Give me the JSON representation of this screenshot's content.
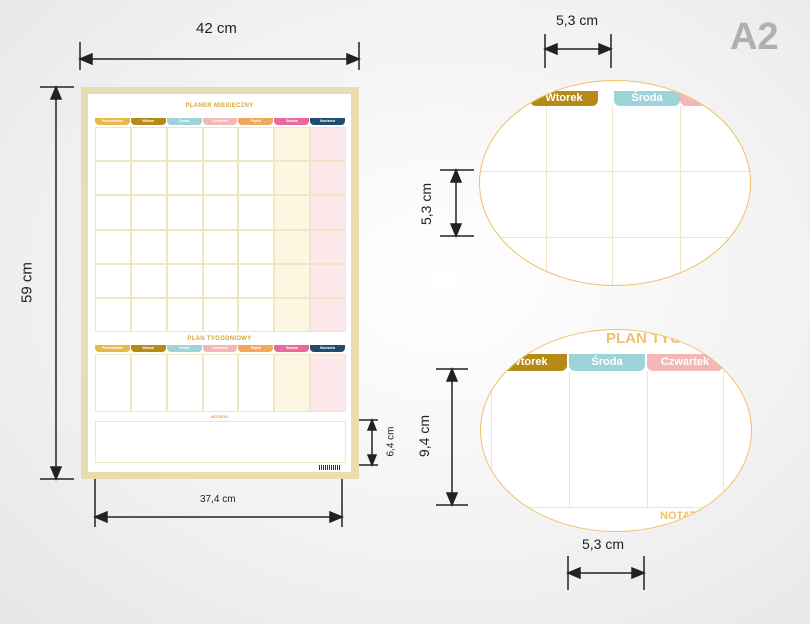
{
  "badge": "A2",
  "dims": {
    "width_top": "42 cm",
    "height_left": "59 cm",
    "inner_width": "37,4 cm",
    "notes_height": "6,4 cm",
    "cell_width_top": "5,3 cm",
    "cell_height_top": "5,3 cm",
    "cell_height_bottom": "9,4 cm",
    "cell_width_bottom": "5,3 cm"
  },
  "poster": {
    "monthly_title": "PLANER MIESIĘCZNY",
    "weekly_title": "PLAN TYGODNIOWY",
    "notes_title": "NOTATKI",
    "days": [
      "Poniedziałek",
      "Wtorek",
      "Środa",
      "Czwartek",
      "Piątek",
      "Sobota",
      "Niedziela"
    ],
    "day_colors": [
      "#e8b84a",
      "#b58a17",
      "#9fd3da",
      "#f3b7b7",
      "#f0a85c",
      "#e8699a",
      "#1e4b6e"
    ]
  },
  "zoom_top": {
    "days": [
      "Wtorek",
      "Środa"
    ]
  },
  "zoom_bottom": {
    "title": "PLAN TYG",
    "days": [
      "Wtorek",
      "Środa",
      "Czwartek"
    ],
    "notes": "NOTAT"
  }
}
